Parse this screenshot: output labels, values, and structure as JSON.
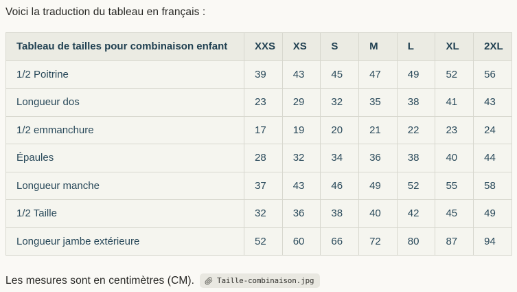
{
  "intro_text": "Voici la traduction du tableau en français :",
  "table": {
    "header": [
      "Tableau de tailles pour combinaison enfant",
      "XXS",
      "XS",
      "S",
      "M",
      "L",
      "XL",
      "2XL"
    ],
    "rows": [
      {
        "label": "1/2 Poitrine",
        "values": [
          "39",
          "43",
          "45",
          "47",
          "49",
          "52",
          "56"
        ]
      },
      {
        "label": "Longueur dos",
        "values": [
          "23",
          "29",
          "32",
          "35",
          "38",
          "41",
          "43"
        ]
      },
      {
        "label": "1/2 emmanchure",
        "values": [
          "17",
          "19",
          "20",
          "21",
          "22",
          "23",
          "24"
        ]
      },
      {
        "label": "Épaules",
        "values": [
          "28",
          "32",
          "34",
          "36",
          "38",
          "40",
          "44"
        ]
      },
      {
        "label": "Longueur manche",
        "values": [
          "37",
          "43",
          "46",
          "49",
          "52",
          "55",
          "58"
        ]
      },
      {
        "label": "1/2 Taille",
        "values": [
          "32",
          "36",
          "38",
          "40",
          "42",
          "45",
          "49"
        ]
      },
      {
        "label": "Longueur jambe extérieure",
        "values": [
          "52",
          "60",
          "66",
          "72",
          "80",
          "87",
          "94"
        ]
      }
    ]
  },
  "footer_text": "Les mesures sont en centimètres (CM).",
  "attachment": {
    "icon": "paperclip-icon",
    "filename": "Taille-combinaison.jpg"
  },
  "colors": {
    "page_background": "#faf9f5",
    "header_background": "#ebebe3",
    "row_background": "#f5f5ef",
    "table_border": "#d7d7ce",
    "table_text": "#29495a",
    "body_text": "#262623",
    "chip_background": "#e9e8e1"
  }
}
